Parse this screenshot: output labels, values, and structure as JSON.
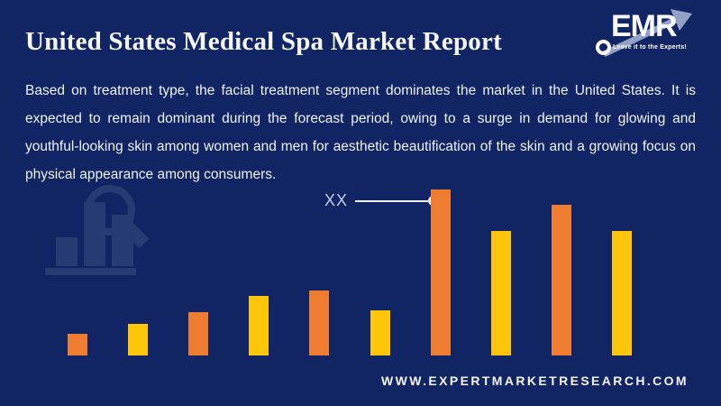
{
  "header": {
    "title": "United States Medical Spa Market Report"
  },
  "logo": {
    "brand": "EMR",
    "tagline": "Leave it to the Experts!"
  },
  "description": "Based on treatment type, the facial treatment segment dominates the market in the United States. It is expected to remain dominant during the forecast period, owing to a surge in demand for glowing and youthful-looking skin among women and men for aesthetic beautification of the skin and a growing focus on physical appearance among consumers.",
  "chart_data": {
    "type": "bar",
    "title": "",
    "xlabel": "",
    "ylabel": "",
    "categories": [
      "",
      "",
      "",
      "",
      "",
      "",
      "",
      "",
      "",
      ""
    ],
    "values": [
      13,
      19,
      26,
      36,
      39,
      27,
      100,
      75,
      91,
      75
    ],
    "value_note": "No numeric axis shown; values are relative heights (max bar = 100), tallest bar labeled XX",
    "bar_colors": [
      "#EE7C31",
      "#FEC60B",
      "#EE7C31",
      "#FEC60B",
      "#EE7C31",
      "#FEC60B",
      "#EE7C31",
      "#FEC60B",
      "#EE7C31",
      "#FEC60B"
    ],
    "annotation": {
      "label": "XX",
      "bar_index": 6
    },
    "axes": {
      "x_ticks_visible": false,
      "y_ticks_visible": false,
      "gridlines": false,
      "legend": false
    }
  },
  "colors": {
    "background": "#112464",
    "orange": "#EE7C31",
    "yellow": "#FEC60B",
    "text": "#EEF2F8",
    "watermark": "#2B4076"
  },
  "footer": {
    "website": "WWW.EXPERTMARKETRESEARCH.COM"
  }
}
